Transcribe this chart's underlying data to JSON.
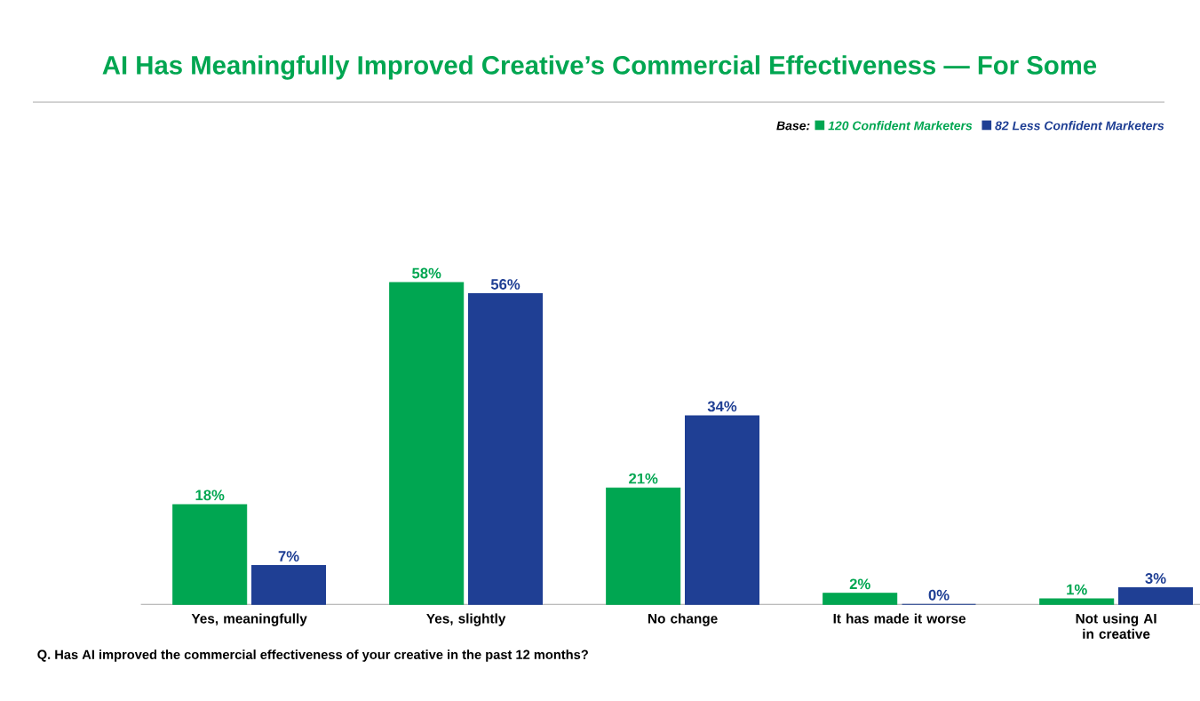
{
  "chart_data": {
    "type": "bar",
    "title": "AI Has Meaningfully Improved Creative’s Commercial Effectiveness — For Some",
    "legend_title": "Base:",
    "legend": "top right",
    "categories": [
      "Yes, meaningfully",
      "Yes, slightly",
      "No change",
      "It has made it worse",
      "Not using AI in creative"
    ],
    "series": [
      {
        "name": "120 Confident Marketers",
        "color": "#00a651",
        "values": [
          18,
          58,
          21,
          2,
          1
        ],
        "value_labels": [
          "18%",
          "58%",
          "21%",
          "2%",
          "1%"
        ]
      },
      {
        "name": "82 Less Confident Marketers",
        "color": "#1f3f94",
        "values": [
          7,
          56,
          34,
          0,
          3
        ],
        "value_labels": [
          "7%",
          "56%",
          "34%",
          "0%",
          "3%"
        ]
      }
    ],
    "annotations": [
      "Q. Has AI improved the commercial effectiveness of your creative in the past 12 months?"
    ]
  }
}
